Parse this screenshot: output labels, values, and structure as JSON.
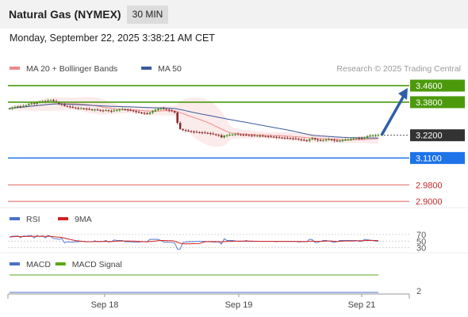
{
  "header": {
    "title": "Natural Gas (NYMEX)",
    "timeframe": "30 MIN",
    "datetime": "Monday, September 22, 2025 3:38:21 AM CET"
  },
  "chart_data": [
    {
      "type": "candlestick",
      "legend": [
        {
          "label": "MA 20 + Bollinger Bands",
          "color": "#f08a8a"
        },
        {
          "label": "MA 50",
          "color": "#3a5a9c"
        }
      ],
      "watermark": "Research © 2025 Trading Central",
      "ylim": [
        2.87,
        3.51
      ],
      "x_tick_labels": [
        "Sep 18",
        "Sep 19",
        "Sep 21"
      ],
      "levels": [
        {
          "label": "3.4600",
          "value": 3.46,
          "color": "#4c9a0c",
          "kind": "resistance"
        },
        {
          "label": "3.3800",
          "value": 3.38,
          "color": "#4c9a0c",
          "kind": "resistance"
        },
        {
          "label": "3.2200",
          "value": 3.22,
          "color": "#333333",
          "kind": "current"
        },
        {
          "label": "3.1100",
          "value": 3.11,
          "color": "#1e73e8",
          "kind": "pivot"
        },
        {
          "label": "2.9800",
          "value": 2.98,
          "color": "#e25b5b",
          "kind": "support"
        },
        {
          "label": "2.9000",
          "value": 2.9,
          "color": "#e25b5b",
          "kind": "support"
        }
      ],
      "close_series": [
        3.35,
        3.353,
        3.356,
        3.36,
        3.358,
        3.362,
        3.365,
        3.37,
        3.375,
        3.372,
        3.378,
        3.38,
        3.385,
        3.382,
        3.388,
        3.39,
        3.385,
        3.38,
        3.372,
        3.368,
        3.362,
        3.36,
        3.357,
        3.354,
        3.352,
        3.35,
        3.35,
        3.349,
        3.347,
        3.345,
        3.343,
        3.344,
        3.342,
        3.34,
        3.339,
        3.341,
        3.338,
        3.336,
        3.34,
        3.342,
        3.344,
        3.346,
        3.344,
        3.342,
        3.34,
        3.337,
        3.333,
        3.33,
        3.328,
        3.326,
        3.324,
        3.33,
        3.336,
        3.342,
        3.348,
        3.35,
        3.347,
        3.344,
        3.34,
        3.336,
        3.33,
        3.28,
        3.25,
        3.245,
        3.242,
        3.24,
        3.238,
        3.236,
        3.235,
        3.234,
        3.233,
        3.232,
        3.23,
        3.228,
        3.225,
        3.222,
        3.22,
        3.21,
        3.218,
        3.22,
        3.222,
        3.224,
        3.225,
        3.224,
        3.223,
        3.222,
        3.221,
        3.22,
        3.219,
        3.218,
        3.218,
        3.217,
        3.216,
        3.215,
        3.214,
        3.213,
        3.212,
        3.21,
        3.209,
        3.208,
        3.207,
        3.206,
        3.205,
        3.204,
        3.203,
        3.2,
        3.198,
        3.196,
        3.194,
        3.2,
        3.205,
        3.2,
        3.196,
        3.195,
        3.197,
        3.199,
        3.2,
        3.198,
        3.194,
        3.192,
        3.194,
        3.196,
        3.198,
        3.2,
        3.202,
        3.204,
        3.206,
        3.205,
        3.204,
        3.21,
        3.215,
        3.218,
        3.22,
        3.22,
        3.22
      ]
    },
    {
      "type": "line",
      "legend": [
        {
          "label": "RSI",
          "color": "#4a72c8"
        },
        {
          "label": "9MA",
          "color": "#d62020"
        }
      ],
      "tick_labels": [
        "70",
        "50",
        "30"
      ],
      "ylim": [
        22,
        84
      ]
    },
    {
      "type": "line",
      "legend": [
        {
          "label": "MACD",
          "color": "#4a72c8"
        },
        {
          "label": "MACD Signal",
          "color": "#5aa81c"
        }
      ],
      "tick_labels": [
        "2"
      ]
    }
  ]
}
